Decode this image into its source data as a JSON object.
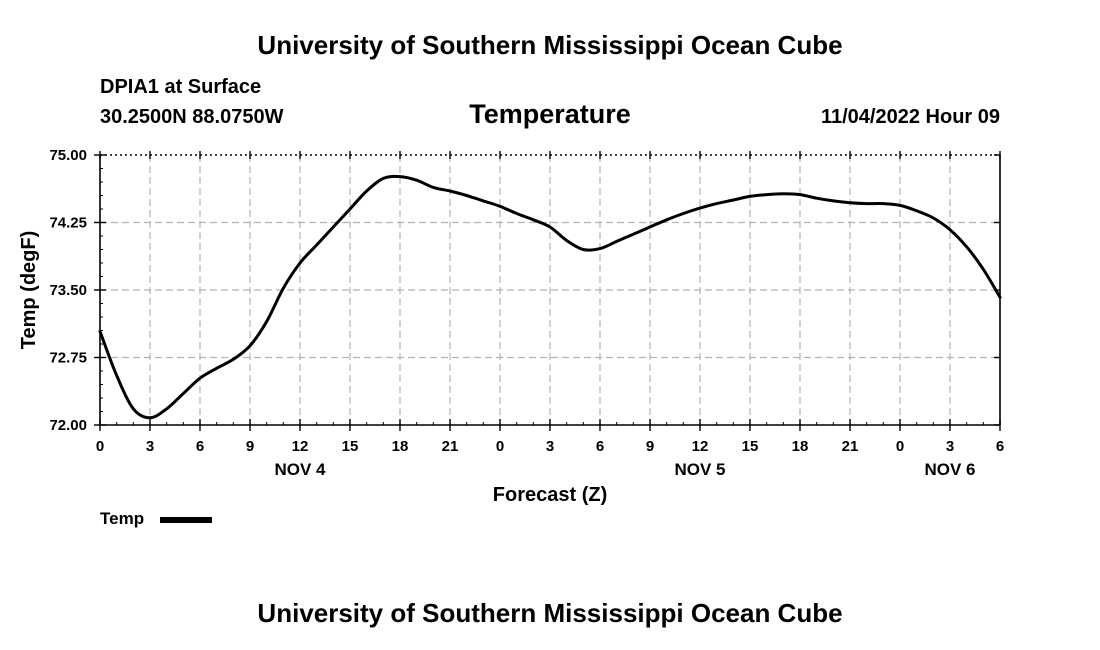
{
  "header": {
    "top_title": "University of Southern Mississippi Ocean Cube",
    "station": "DPIA1 at Surface",
    "coordinates": "30.2500N  88.0750W",
    "plot_title": "Temperature",
    "date": "11/04/2022 Hour 09"
  },
  "footer": {
    "bottom_title": "University of Southern Mississippi Ocean Cube"
  },
  "legend": {
    "label": "Temp",
    "color": "#000000"
  },
  "chart_data": {
    "type": "line",
    "title": "Temperature",
    "xlabel": "Forecast (Z)",
    "ylabel": "Temp (degF)",
    "xlim": [
      0,
      54
    ],
    "ylim": [
      72.0,
      75.0
    ],
    "x_tick_labels": [
      "0",
      "3",
      "6",
      "9",
      "12",
      "15",
      "18",
      "21",
      "0",
      "3",
      "6",
      "9",
      "12",
      "15",
      "18",
      "21",
      "0",
      "3",
      "6"
    ],
    "y_tick_labels": [
      "72.00",
      "72.75",
      "73.50",
      "74.25",
      "75.00"
    ],
    "y_ticks": [
      72.0,
      72.75,
      73.5,
      74.25,
      75.0
    ],
    "day_labels": [
      {
        "x": 12,
        "label": "NOV 4"
      },
      {
        "x": 36,
        "label": "NOV 5"
      },
      {
        "x": 51,
        "label": "NOV 6"
      }
    ],
    "grid": true,
    "series": [
      {
        "name": "Temp",
        "color": "#000000",
        "x": [
          0,
          1,
          2,
          3,
          4,
          5,
          6,
          7,
          8,
          9,
          10,
          11,
          12,
          13,
          14,
          15,
          16,
          17,
          18,
          19,
          20,
          21,
          22,
          23,
          24,
          25,
          26,
          27,
          28,
          29,
          30,
          31,
          32,
          33,
          34,
          35,
          36,
          37,
          38,
          39,
          40,
          41,
          42,
          43,
          44,
          45,
          46,
          47,
          48,
          49,
          50,
          51,
          52,
          53,
          54
        ],
        "y": [
          73.04,
          72.55,
          72.18,
          72.08,
          72.18,
          72.35,
          72.52,
          72.63,
          72.73,
          72.88,
          73.15,
          73.52,
          73.8,
          74.0,
          74.2,
          74.4,
          74.6,
          74.74,
          74.76,
          74.72,
          74.64,
          74.6,
          74.55,
          74.49,
          74.43,
          74.35,
          74.28,
          74.2,
          74.05,
          73.95,
          73.96,
          74.04,
          74.12,
          74.2,
          74.28,
          74.35,
          74.41,
          74.46,
          74.5,
          74.54,
          74.56,
          74.57,
          74.56,
          74.52,
          74.49,
          74.47,
          74.46,
          74.46,
          74.44,
          74.38,
          74.3,
          74.17,
          73.98,
          73.73,
          73.42
        ]
      }
    ]
  }
}
